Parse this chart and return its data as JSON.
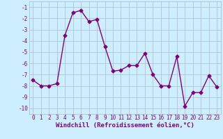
{
  "x": [
    0,
    1,
    2,
    3,
    4,
    5,
    6,
    7,
    8,
    9,
    10,
    11,
    12,
    13,
    14,
    15,
    16,
    17,
    18,
    19,
    20,
    21,
    22,
    23
  ],
  "y": [
    -7.5,
    -8.0,
    -8.0,
    -7.8,
    -3.5,
    -1.5,
    -1.3,
    -2.3,
    -2.1,
    -4.5,
    -6.7,
    -6.6,
    -6.2,
    -6.2,
    -5.1,
    -7.0,
    -8.0,
    -8.0,
    -5.4,
    -9.8,
    -8.6,
    -8.6,
    -7.1,
    -8.1
  ],
  "line_color": "#800080",
  "marker": "D",
  "marker_size": 2.5,
  "linewidth": 1.0,
  "xlabel": "Windchill (Refroidissement éolien,°C)",
  "xlim": [
    -0.5,
    23.5
  ],
  "ylim": [
    -10.5,
    -0.5
  ],
  "yticks": [
    -10,
    -9,
    -8,
    -7,
    -6,
    -5,
    -4,
    -3,
    -2,
    -1
  ],
  "xticks": [
    0,
    1,
    2,
    3,
    4,
    5,
    6,
    7,
    8,
    9,
    10,
    11,
    12,
    13,
    14,
    15,
    16,
    17,
    18,
    19,
    20,
    21,
    22,
    23
  ],
  "bg_color": "#cceeff",
  "grid_color": "#aabbcc",
  "label_fontsize": 6.5,
  "tick_fontsize": 5.5
}
